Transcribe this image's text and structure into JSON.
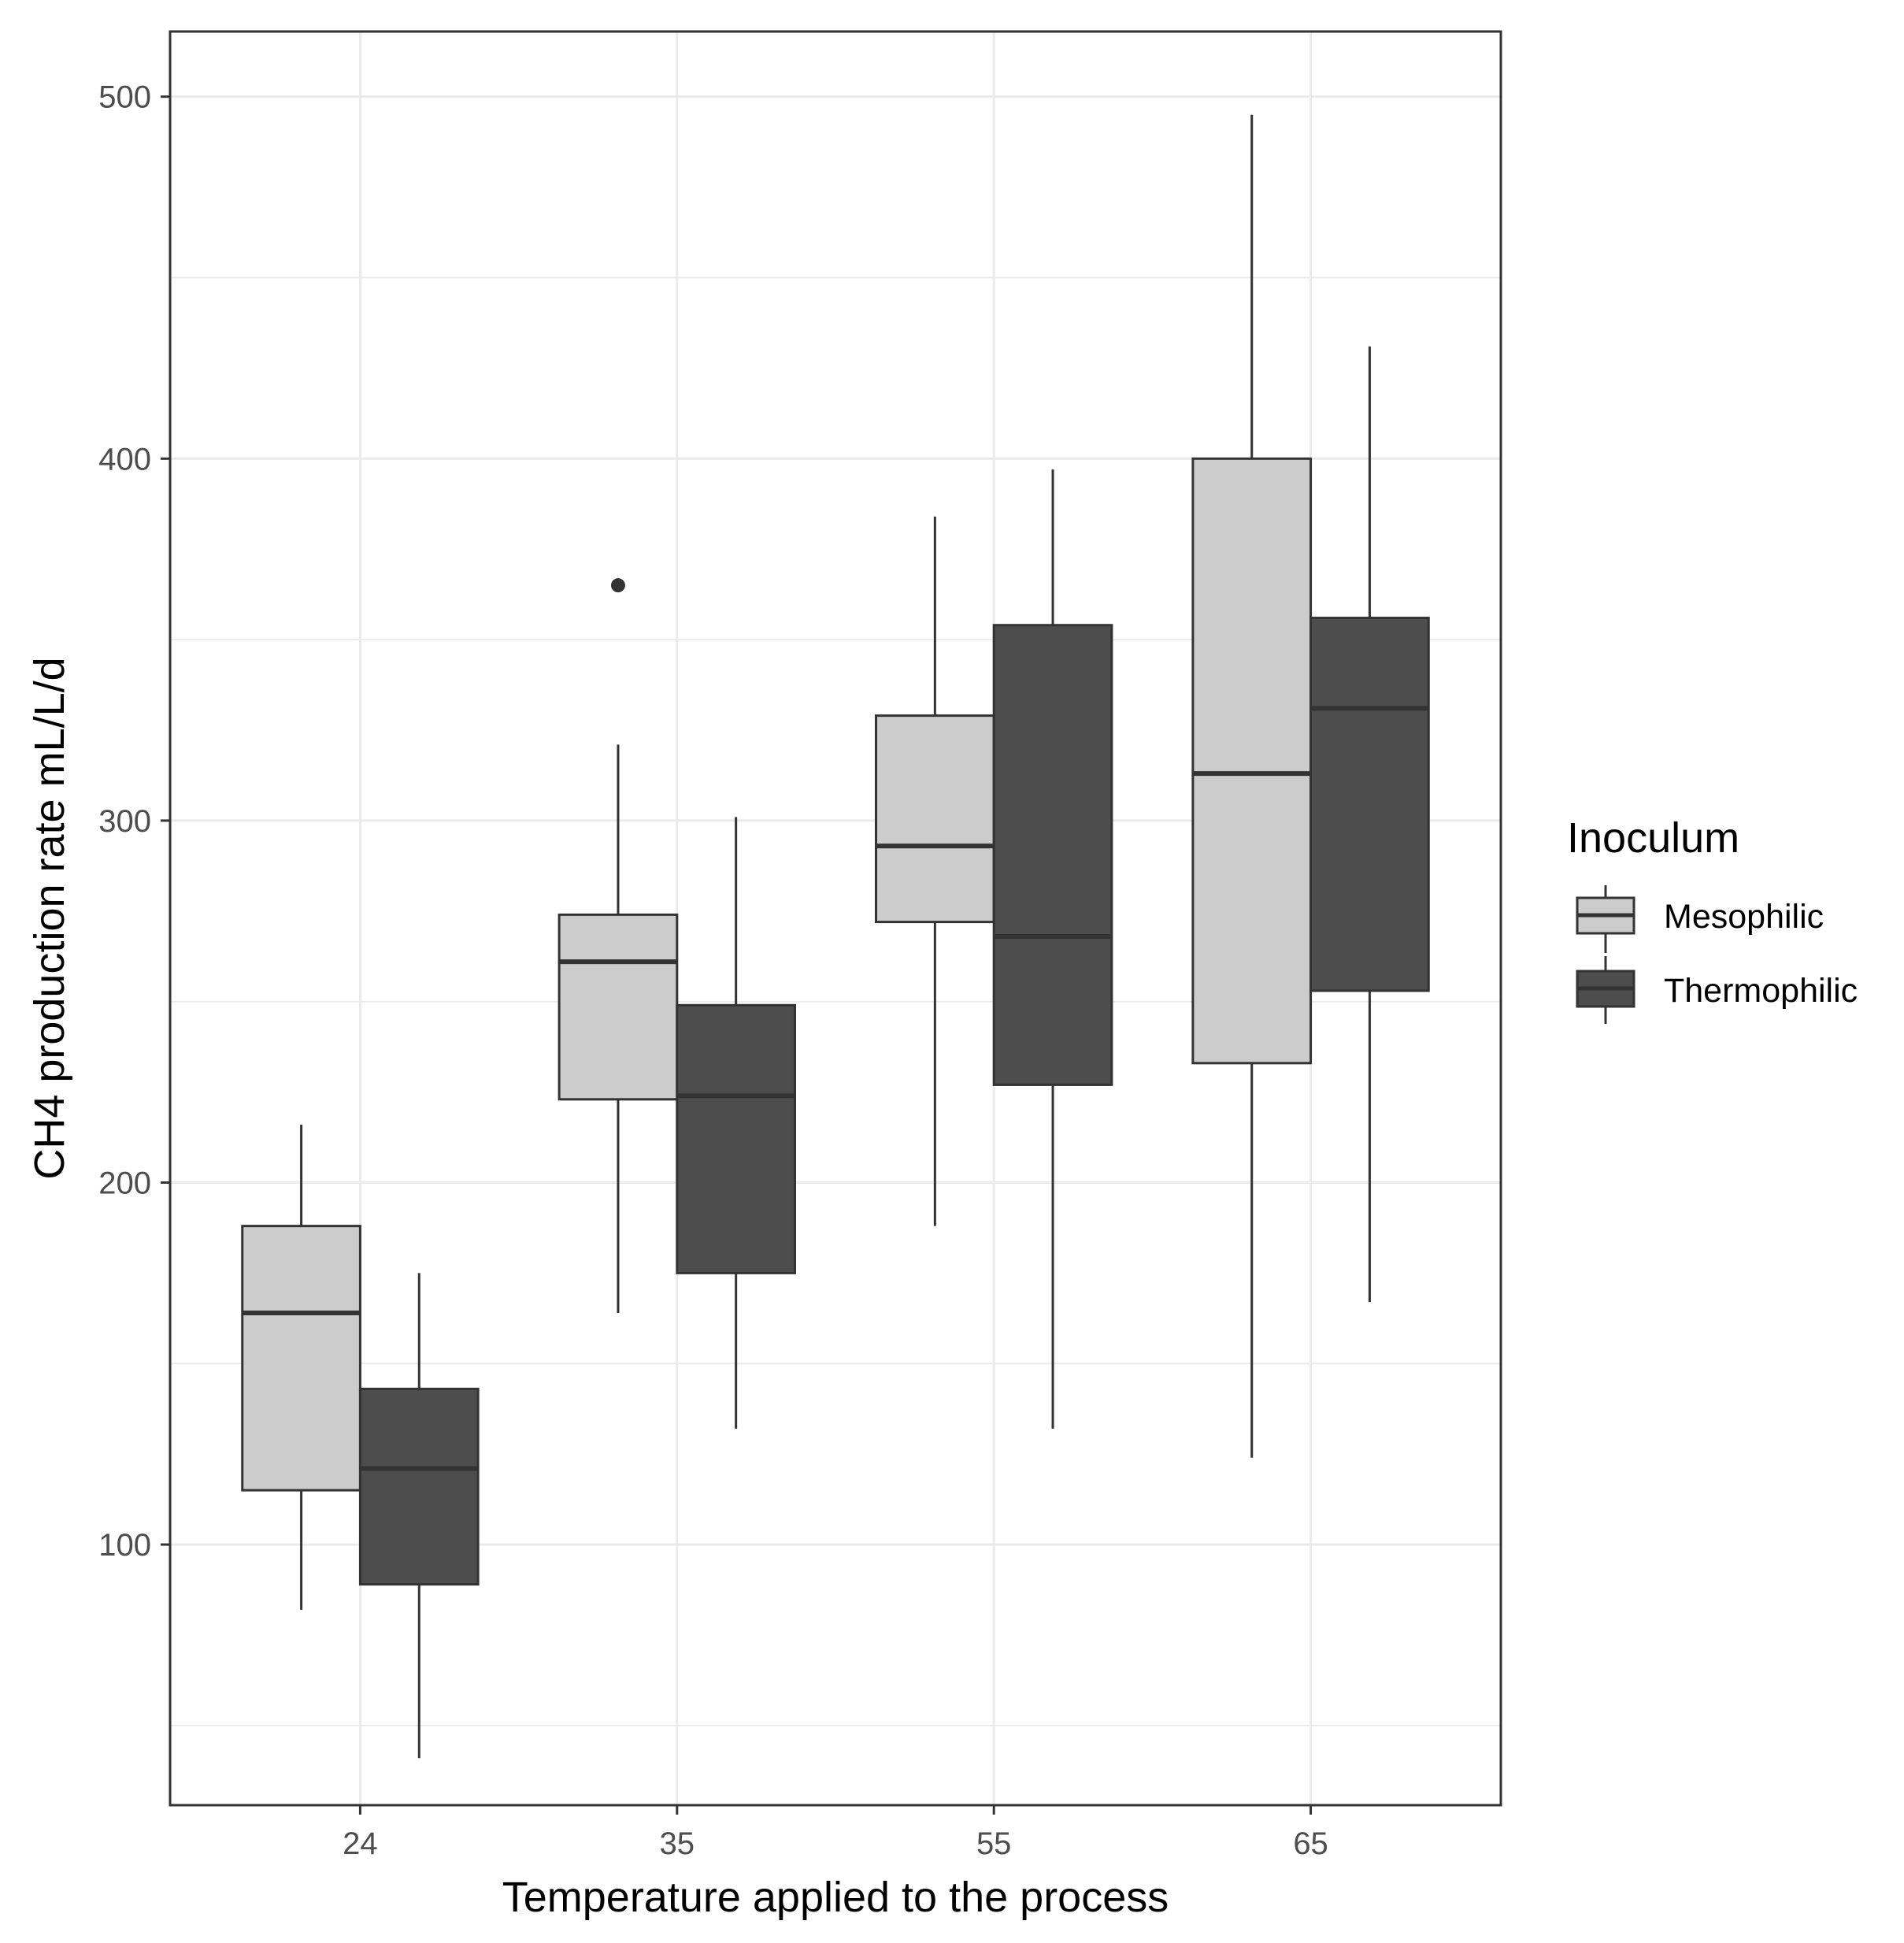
{
  "chart_data": {
    "type": "boxplot",
    "title": "",
    "xlabel": "Temperature applied to the process",
    "ylabel": "CH4 production rate mL/L/d",
    "categories": [
      "24",
      "35",
      "55",
      "65"
    ],
    "ylim": [
      28,
      518
    ],
    "y_ticks": [
      100,
      200,
      300,
      400,
      500
    ],
    "y_minor_ticks": [
      50,
      150,
      250,
      350,
      450
    ],
    "grid": true,
    "legend": {
      "title": "Inoculum",
      "position": "right"
    },
    "series": [
      {
        "name": "Mesophilic",
        "color": "#cccccc",
        "boxes": [
          {
            "category": "24",
            "whisker_low": 82,
            "q1": 115,
            "median": 164,
            "q3": 188,
            "whisker_high": 216,
            "outliers": []
          },
          {
            "category": "35",
            "whisker_low": 164,
            "q1": 223,
            "median": 261,
            "q3": 274,
            "whisker_high": 321,
            "outliers": [
              365
            ]
          },
          {
            "category": "55",
            "whisker_low": 188,
            "q1": 272,
            "median": 293,
            "q3": 329,
            "whisker_high": 384,
            "outliers": []
          },
          {
            "category": "65",
            "whisker_low": 124,
            "q1": 233,
            "median": 313,
            "q3": 400,
            "whisker_high": 495,
            "outliers": []
          }
        ]
      },
      {
        "name": "Thermophilic",
        "color": "#4d4d4d",
        "boxes": [
          {
            "category": "24",
            "whisker_low": 41,
            "q1": 89,
            "median": 121,
            "q3": 143,
            "whisker_high": 175,
            "outliers": []
          },
          {
            "category": "35",
            "whisker_low": 132,
            "q1": 175,
            "median": 224,
            "q3": 249,
            "whisker_high": 301,
            "outliers": []
          },
          {
            "category": "55",
            "whisker_low": 132,
            "q1": 227,
            "median": 268,
            "q3": 354,
            "whisker_high": 397,
            "outliers": []
          },
          {
            "category": "65",
            "whisker_low": 167,
            "q1": 253,
            "median": 331,
            "q3": 356,
            "whisker_high": 431,
            "outliers": []
          }
        ]
      }
    ]
  }
}
